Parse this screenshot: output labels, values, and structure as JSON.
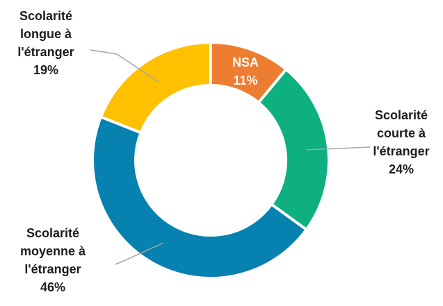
{
  "chart_data": {
    "type": "pie",
    "donut": true,
    "slices": [
      {
        "label": "NSA",
        "value": 11,
        "value_label": "11%",
        "color": "#ED7D31"
      },
      {
        "label": "Scolarité courte à l'étranger",
        "value": 24,
        "value_label": "24%",
        "color": "#0DB07E"
      },
      {
        "label": "Scolarité moyenne à l'étranger",
        "value": 46,
        "value_label": "46%",
        "color": "#0782B0"
      },
      {
        "label": "Scolarité longue à l'étranger",
        "value": 19,
        "value_label": "19%",
        "color": "#FFC000"
      }
    ]
  },
  "labels": {
    "nsa": {
      "lines": [
        "NSA",
        "11%"
      ]
    },
    "courte": {
      "lines": [
        "Scolarité",
        "courte à",
        "l'étranger",
        "24%"
      ]
    },
    "moyenne": {
      "lines": [
        "Scolarité",
        "moyenne à",
        "l'étranger",
        "46%"
      ]
    },
    "longue": {
      "lines": [
        "Scolarité",
        "longue à",
        "l'étranger",
        "19%"
      ]
    }
  }
}
